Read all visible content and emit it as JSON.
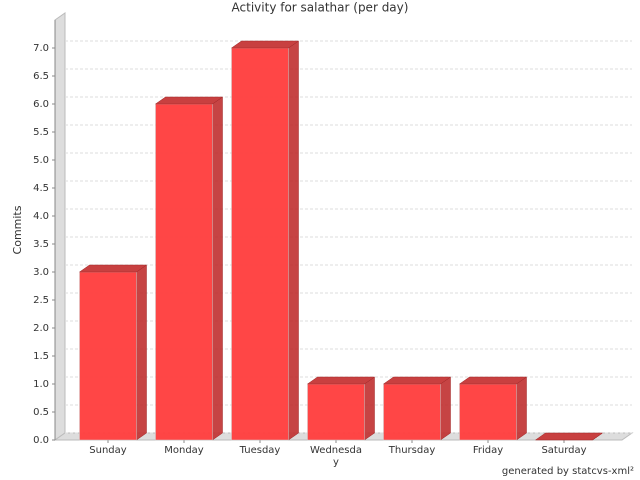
{
  "chart_data": {
    "type": "bar3d",
    "title": "Activity for salathar (per day)",
    "y_label": "Commits",
    "categories": [
      "Sunday",
      "Monday",
      "Tuesday",
      "Wednesday",
      "Thursday",
      "Friday",
      "Saturday"
    ],
    "values": [
      3,
      6,
      7,
      1,
      1,
      1,
      0
    ],
    "color": "#ff3c3c",
    "ylim": [
      0,
      7.5
    ],
    "yticks": [
      {
        "value": 0,
        "label": "0.0"
      },
      {
        "value": 0.5,
        "label": "0.5"
      },
      {
        "value": 1,
        "label": "1.0"
      },
      {
        "value": 1.5,
        "label": "1.5"
      },
      {
        "value": 2,
        "label": "2.0"
      },
      {
        "value": 2.5,
        "label": "2.5"
      },
      {
        "value": 3,
        "label": "3.0"
      },
      {
        "value": 3.5,
        "label": "3.5"
      },
      {
        "value": 4,
        "label": "4.0"
      },
      {
        "value": 4.5,
        "label": "4.5"
      },
      {
        "value": 5,
        "label": "5.0"
      },
      {
        "value": 5.5,
        "label": "5.5"
      },
      {
        "value": 6,
        "label": "6.0"
      },
      {
        "value": 6.5,
        "label": "6.5"
      },
      {
        "value": 7,
        "label": "7.0"
      }
    ],
    "grid": true,
    "footer": "generated by statcvs-xml²"
  }
}
